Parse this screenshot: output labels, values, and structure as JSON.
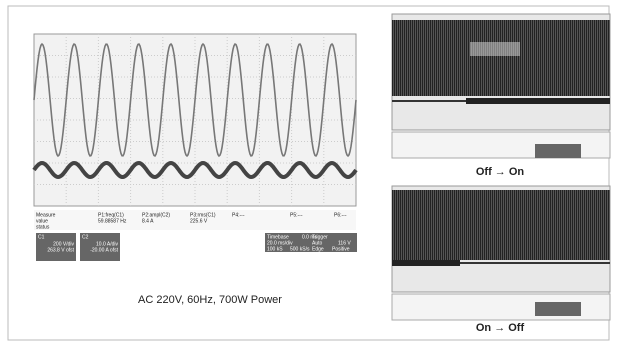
{
  "main_scope": {
    "measure_headers": [
      "Measure",
      "P1:freq(C1)",
      "P2:ampl(C2)",
      "P3:rms(C1)",
      "P4:---",
      "P5:---",
      "P6:---"
    ],
    "value_row": [
      "value",
      "59.88587 Hz",
      "8.4 A",
      "225.6 V"
    ],
    "status_label": "status",
    "channels": [
      {
        "name": "C1",
        "scale": "200 V/div",
        "offset": "263.8 V ofst"
      },
      {
        "name": "C2",
        "scale": "10.0 A/div",
        "offset": "-20.00 A ofst"
      }
    ],
    "timebase": {
      "label": "Timebase",
      "delay": "0.0 ms",
      "scale": "20.0 ms/div",
      "samples": "100 kS",
      "rate": "500 kS/s"
    },
    "trigger": {
      "label": "Trigger",
      "mode": "Auto",
      "level": "116 V",
      "type": "Edge",
      "slope": "Positive"
    }
  },
  "caption": "AC 220V, 60Hz, 700W Power",
  "captures": [
    {
      "label": "Off → On"
    },
    {
      "label": "On → Off"
    }
  ]
}
